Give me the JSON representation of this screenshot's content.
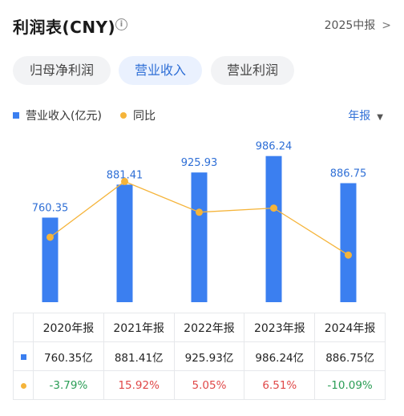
{
  "header": {
    "title": "利润表(CNY)",
    "info_icon": "info-circle-icon",
    "report_label": "2025中报"
  },
  "tabs": [
    {
      "label": "归母净利润",
      "active": false
    },
    {
      "label": "营业收入",
      "active": true
    },
    {
      "label": "营业利润",
      "active": false
    }
  ],
  "legend": {
    "bar_label": "营业收入(亿元)",
    "line_label": "同比",
    "period_label": "年报"
  },
  "colors": {
    "bar": "#3b7ff0",
    "line": "#f5b43a",
    "positive": "#e04848",
    "negative": "#2a9d55",
    "accent": "#2f6fd6"
  },
  "chart_data": {
    "type": "bar",
    "categories": [
      "2020年报",
      "2021年报",
      "2022年报",
      "2023年报",
      "2024年报"
    ],
    "series": [
      {
        "name": "营业收入(亿元)",
        "type": "bar",
        "values": [
          760.35,
          881.41,
          925.93,
          986.24,
          886.75
        ],
        "labels": [
          "760.35",
          "881.41",
          "925.93",
          "986.24",
          "886.75"
        ]
      },
      {
        "name": "同比",
        "type": "line",
        "values": [
          -3.79,
          15.92,
          5.05,
          6.51,
          -10.09
        ]
      }
    ]
  },
  "table": {
    "headers": [
      "2020年报",
      "2021年报",
      "2022年报",
      "2023年报",
      "2024年报"
    ],
    "revenue": [
      "760.35亿",
      "881.41亿",
      "925.93亿",
      "986.24亿",
      "886.75亿"
    ],
    "yoy": [
      "-3.79%",
      "15.92%",
      "5.05%",
      "6.51%",
      "-10.09%"
    ]
  }
}
